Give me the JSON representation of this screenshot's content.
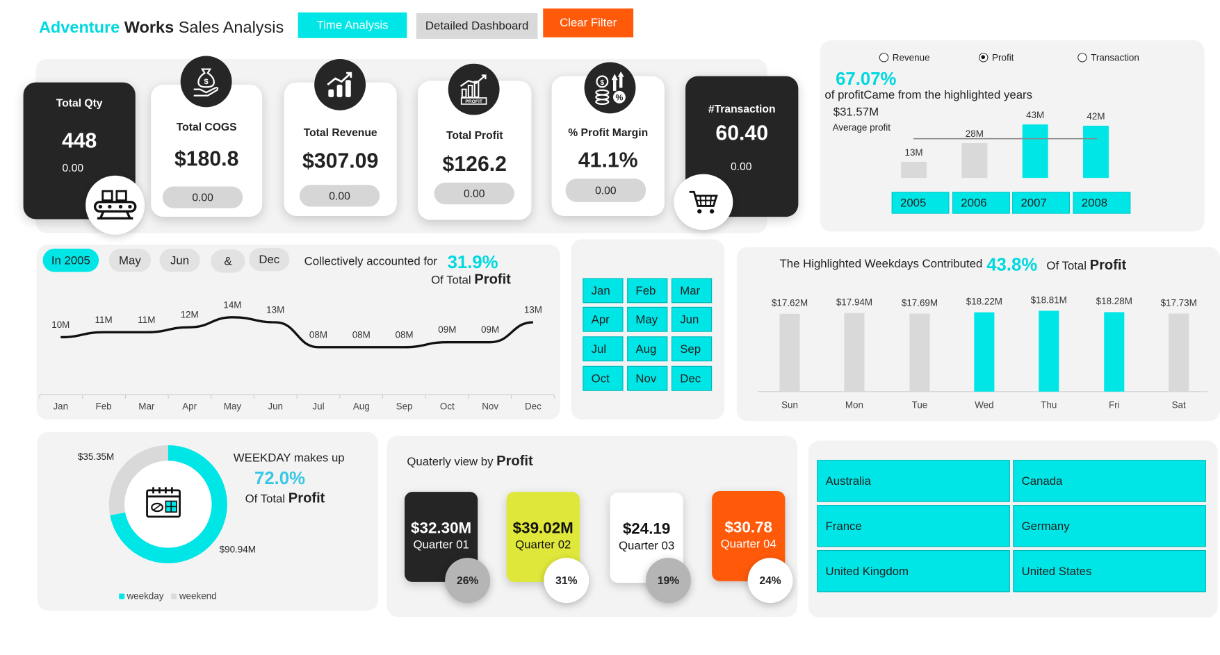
{
  "header": {
    "title_a": "Adventure",
    "title_b": "Works",
    "title_c": "Sales Analysis",
    "buttons": {
      "time": "Time Analysis",
      "detailed": "Detailed Dashboard",
      "clear": "Clear Filter"
    }
  },
  "colors": {
    "accent": "#00e6e6",
    "dark": "#252525",
    "orange": "#ff5a0a",
    "lime": "#dfe83a",
    "grey": "#d9d9d9"
  },
  "kpis": [
    {
      "label": "Total Qty",
      "value": "448",
      "sub": "0.00",
      "icon": "conveyor-icon"
    },
    {
      "label": "Total COGS",
      "value": "$180.8",
      "sub": "0.00",
      "icon": "money-hand-icon"
    },
    {
      "label": "Total Revenue",
      "value": "$307.09",
      "sub": "0.00",
      "icon": "growth-chart-icon"
    },
    {
      "label": "Total Profit",
      "value": "$126.2",
      "sub": "0.00",
      "icon": "profit-chart-icon"
    },
    {
      "label": "% Profit Margin",
      "value": "41.1%",
      "sub": "0.00",
      "icon": "coins-percent-icon"
    },
    {
      "label": "#Transaction",
      "value": "60.40",
      "sub": "0.00",
      "icon": "shopping-cart-icon"
    }
  ],
  "yearly": {
    "radios": [
      "Revenue",
      "Profit",
      "Transaction"
    ],
    "selected": "Profit",
    "pct": "67.07%",
    "desc": "of  profitCame from the highlighted years",
    "avg_value": "$31.57M",
    "avg_label": "Average  profit",
    "years": [
      "2005",
      "2006",
      "2007",
      "2008"
    ]
  },
  "monthly": {
    "slicers": [
      "In 2005",
      "May",
      "Jun",
      "&",
      "Dec"
    ],
    "desc": "Collectively accounted for",
    "pct": "31.9%",
    "of": "Of Total",
    "measure": "Profit",
    "months_grid": [
      "Jan",
      "Feb",
      "Mar",
      "Apr",
      "May",
      "Jun",
      "Jul",
      "Aug",
      "Sep",
      "Oct",
      "Nov",
      "Dec"
    ]
  },
  "weekday_panel": {
    "desc": "The Highlighted Weekdays Contributed",
    "pct": "43.8%",
    "of": "Of Total",
    "measure": "Profit"
  },
  "donut": {
    "title": "WEEKDAY makes up",
    "pct": "72.0%",
    "of": "Of Total",
    "measure": "Profit",
    "weekend_label": "$35.35M",
    "weekday_label": "$90.94M",
    "legend": [
      "weekday",
      "weekend"
    ],
    "icon": "calendar-icon"
  },
  "quarterly": {
    "title": "Quaterly view by",
    "measure": "Profit",
    "cards": [
      {
        "value": "$32.30M",
        "label": "Quarter 01",
        "pct": "26%"
      },
      {
        "value": "$39.02M",
        "label": "Quarter 02",
        "pct": "31%"
      },
      {
        "value": "$24.19",
        "label": "Quarter 03",
        "pct": "19%"
      },
      {
        "value": "$30.78",
        "label": "Quarter 04",
        "pct": "24%"
      }
    ]
  },
  "countries": [
    "Australia",
    "Canada",
    "France",
    "Germany",
    "United Kingdom",
    "United States"
  ],
  "chart_data": [
    {
      "type": "bar",
      "title": "",
      "categories": [
        "2005",
        "2006",
        "2007",
        "2008"
      ],
      "values": [
        13,
        28,
        43,
        42
      ],
      "labels": [
        "13M",
        "28M",
        "43M",
        "42M"
      ],
      "highlighted": [
        false,
        false,
        true,
        true
      ],
      "average": 31.57,
      "ylim": [
        0,
        45
      ],
      "unit": "M"
    },
    {
      "type": "line",
      "title": "",
      "categories": [
        "Jan",
        "Feb",
        "Mar",
        "Apr",
        "May",
        "Jun",
        "Jul",
        "Aug",
        "Sep",
        "Oct",
        "Nov",
        "Dec"
      ],
      "values": [
        10,
        11,
        11,
        12,
        14,
        13,
        8,
        8,
        8,
        9,
        9,
        13
      ],
      "labels": [
        "10M",
        "11M",
        "11M",
        "12M",
        "14M",
        "13M",
        "08M",
        "08M",
        "08M",
        "09M",
        "09M",
        "13M"
      ],
      "ylim": [
        0,
        16
      ]
    },
    {
      "type": "bar",
      "title": "",
      "categories": [
        "Sun",
        "Mon",
        "Tue",
        "Wed",
        "Thu",
        "Fri",
        "Sat"
      ],
      "values": [
        17.62,
        17.94,
        17.69,
        18.22,
        18.81,
        18.28,
        17.73
      ],
      "labels": [
        "$17.62M",
        "$17.94M",
        "$17.69M",
        "$18.22M",
        "$18.81M",
        "$18.28M",
        "$17.73M"
      ],
      "highlighted": [
        false,
        false,
        false,
        true,
        true,
        true,
        false
      ],
      "ylim": [
        0,
        20
      ]
    },
    {
      "type": "pie",
      "title": "",
      "categories": [
        "weekday",
        "weekend"
      ],
      "values": [
        90.94,
        35.35
      ]
    }
  ]
}
